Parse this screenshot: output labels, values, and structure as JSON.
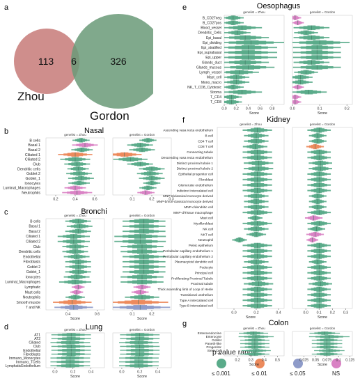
{
  "colors": {
    "sig001": "#5aab8a",
    "sig01": "#ec8a5c",
    "sig05": "#8e9bc9",
    "ns": "#d982c4",
    "venn_zhou": "#c77a78",
    "venn_gordon": "#6a9a78",
    "grid": "#dddddd",
    "axis": "#555555"
  },
  "venn": {
    "letter": "a",
    "zhou_only": "113",
    "overlap": "6",
    "gordon_only": "326",
    "zhou_label": "Zhou",
    "gordon_label": "Gordon"
  },
  "legend": {
    "title": "p value range",
    "items": [
      {
        "label": "≤ 0.001",
        "color_key": "sig001"
      },
      {
        "label": "≤ 0.01",
        "color_key": "sig01"
      },
      {
        "label": "≤ 0.05",
        "color_key": "sig05"
      },
      {
        "label": "NS",
        "color_key": "ns"
      }
    ]
  },
  "chart_data": [
    {
      "id": "nasal",
      "letter": "b",
      "title": "Nasal",
      "type": "violin",
      "xlabel": "",
      "categories": [
        "B cells",
        "Basal 1",
        "Basal 2",
        "Ciliated 1",
        "Ciliated 2",
        "Club",
        "Dendritic cells",
        "Goblet 2",
        "Goblet_1",
        "Ionocytes",
        "Luminal_Macrophages",
        "Neutrophils"
      ],
      "panels": [
        {
          "genelist": "genelist = Zhou",
          "xlim": [
            0.1,
            0.7
          ],
          "ticks": [
            0.2,
            0.4,
            0.6
          ],
          "values": [
            0.46,
            0.5,
            0.47,
            0.4,
            0.4,
            0.42,
            0.43,
            0.44,
            0.46,
            0.44,
            0.4,
            0.42
          ],
          "spread": [
            0.04,
            0.06,
            0.05,
            0.08,
            0.07,
            0.06,
            0.05,
            0.06,
            0.06,
            0.05,
            0.05,
            0.07
          ],
          "pcat": [
            "sig001",
            "ns",
            "sig001",
            "sig01",
            "sig001",
            "sig001",
            "sig001",
            "sig001",
            "sig001",
            "sig001",
            "ns",
            "ns"
          ]
        },
        {
          "genelist": "genelist = Gordon",
          "xlim": [
            0.0,
            0.3
          ],
          "ticks": [
            0.1,
            0.2,
            0.3
          ],
          "values": [
            0.18,
            0.14,
            0.15,
            0.06,
            0.09,
            0.14,
            0.2,
            0.19,
            0.2,
            0.2,
            0.18,
            0.17
          ],
          "spread": [
            0.02,
            0.03,
            0.03,
            0.04,
            0.04,
            0.03,
            0.03,
            0.03,
            0.03,
            0.02,
            0.02,
            0.02
          ],
          "pcat": [
            "sig001",
            "sig001",
            "sig001",
            "sig01",
            "sig001",
            "sig001",
            "sig001",
            "sig001",
            "sig001",
            "sig001",
            "sig001",
            "ns"
          ]
        }
      ]
    },
    {
      "id": "bronchi",
      "letter": "c",
      "title": "Bronchi",
      "type": "violin",
      "xlabel": "Score",
      "categories": [
        "B cells",
        "Basal 1",
        "Basal 2",
        "Ciliated 1",
        "Ciliated 2",
        "Club",
        "Dendritic cells",
        "Endothelial",
        "Fibroblasts",
        "Goblet 2",
        "Goblet_1",
        "Ionocytes",
        "Luminal_Macrophages",
        "Lymphatic",
        "Mast cells",
        "Neutrophils",
        "Smooth muscle",
        "T and NK"
      ],
      "panels": [
        {
          "genelist": "genelist = Zhou",
          "xlim": [
            0.25,
            0.65
          ],
          "ticks": [
            0.4,
            0.6
          ],
          "values": [
            0.47,
            0.48,
            0.47,
            0.44,
            0.44,
            0.45,
            0.45,
            0.46,
            0.47,
            0.47,
            0.47,
            0.46,
            0.45,
            0.47,
            0.46,
            0.45,
            0.43,
            0.44
          ],
          "spread": [
            0.04,
            0.04,
            0.04,
            0.05,
            0.05,
            0.04,
            0.04,
            0.04,
            0.04,
            0.04,
            0.04,
            0.04,
            0.05,
            0.02,
            0.02,
            0.03,
            0.06,
            0.06
          ],
          "pcat": [
            "sig001",
            "sig001",
            "sig001",
            "sig001",
            "sig001",
            "sig001",
            "sig001",
            "sig001",
            "sig001",
            "sig001",
            "sig001",
            "sig001",
            "sig001",
            "ns",
            "ns",
            "sig001",
            "sig01",
            "sig05"
          ]
        },
        {
          "genelist": "genelist = Gordon",
          "xlim": [
            0.0,
            0.3
          ],
          "ticks": [
            0.1,
            0.2
          ],
          "values": [
            0.16,
            0.16,
            0.16,
            0.14,
            0.14,
            0.15,
            0.15,
            0.16,
            0.16,
            0.16,
            0.16,
            0.15,
            0.15,
            0.15,
            0.14,
            0.15,
            0.13,
            0.14
          ],
          "spread": [
            0.05,
            0.05,
            0.05,
            0.06,
            0.06,
            0.05,
            0.05,
            0.05,
            0.05,
            0.05,
            0.05,
            0.05,
            0.05,
            0.02,
            0.02,
            0.04,
            0.07,
            0.07
          ],
          "pcat": [
            "sig001",
            "sig001",
            "sig001",
            "sig001",
            "sig001",
            "sig001",
            "sig001",
            "sig001",
            "sig001",
            "sig001",
            "sig001",
            "sig001",
            "sig001",
            "ns",
            "ns",
            "sig001",
            "sig01",
            "sig05"
          ]
        }
      ]
    },
    {
      "id": "lung",
      "letter": "d",
      "title": "Lung",
      "type": "violin",
      "xlabel": "Score",
      "categories": [
        "AT1",
        "AT2",
        "Ciliated",
        "Club",
        "Endothelial",
        "Fibroblasts",
        "Immuno_Monocytes",
        "Immuno_TCells",
        "LymphaticEndothelium"
      ],
      "panels": [
        {
          "genelist": "genelist = Zhou",
          "xlim": [
            -0.1,
            0.55
          ],
          "ticks": [
            0.0,
            0.2,
            0.4
          ],
          "values": [
            0.18,
            0.18,
            0.17,
            0.18,
            0.18,
            0.18,
            0.17,
            0.17,
            0.17
          ],
          "spread": [
            0.1,
            0.1,
            0.1,
            0.1,
            0.1,
            0.1,
            0.1,
            0.1,
            0.1
          ],
          "pcat": [
            "sig001",
            "sig001",
            "sig001",
            "sig001",
            "sig001",
            "sig001",
            "sig001",
            "sig001",
            "sig001"
          ]
        },
        {
          "genelist": "genelist = Gordon",
          "xlim": [
            -0.1,
            0.55
          ],
          "ticks": [
            0.0,
            0.2,
            0.4
          ],
          "values": [
            0.2,
            0.2,
            0.19,
            0.2,
            0.2,
            0.2,
            0.19,
            0.19,
            0.19
          ],
          "spread": [
            0.1,
            0.1,
            0.1,
            0.1,
            0.1,
            0.1,
            0.1,
            0.1,
            0.1
          ],
          "pcat": [
            "sig001",
            "sig001",
            "sig001",
            "sig001",
            "sig001",
            "sig001",
            "sig001",
            "sig001",
            "sig001"
          ]
        }
      ]
    },
    {
      "id": "oesophagus",
      "letter": "e",
      "title": "Oesophagus",
      "type": "violin",
      "xlabel": "Score",
      "categories": [
        "B_CD27neg",
        "B_CD27pos",
        "Blood_vessel",
        "Dendritic_Cells",
        "Epi_basal",
        "Epi_dividing",
        "Epi_stratified",
        "Epi_suprabasal",
        "Epi_upper",
        "Glands_duct",
        "Glands_mucous",
        "Lymph_vessel",
        "Mast_cell",
        "Mono_macro",
        "NK_T_CD8_Cytotoxic",
        "Stroma",
        "T_CD4",
        "T_CD8"
      ],
      "panels": [
        {
          "genelist": "genelist = Zhou",
          "xlim": [
            0.0,
            1.0
          ],
          "ticks": [
            0.0,
            0.2,
            0.4,
            0.6,
            0.8
          ],
          "values": [
            0.15,
            0.15,
            0.3,
            0.22,
            0.35,
            0.45,
            0.4,
            0.4,
            0.4,
            0.35,
            0.4,
            0.25,
            0.2,
            0.2,
            0.15,
            0.3,
            0.12,
            0.12
          ],
          "spread": [
            0.08,
            0.08,
            0.15,
            0.1,
            0.18,
            0.25,
            0.22,
            0.22,
            0.22,
            0.18,
            0.2,
            0.15,
            0.1,
            0.1,
            0.08,
            0.15,
            0.08,
            0.08
          ],
          "pcat": [
            "sig001",
            "sig001",
            "sig001",
            "sig001",
            "sig001",
            "sig001",
            "sig001",
            "sig001",
            "sig001",
            "sig001",
            "sig001",
            "sig001",
            "sig001",
            "sig001",
            "sig001",
            "sig001",
            "sig001",
            "sig001"
          ]
        },
        {
          "genelist": "genelist = Gordon",
          "xlim": [
            0.0,
            0.22
          ],
          "ticks": [
            0.0,
            0.1,
            0.2
          ],
          "values": [
            0.01,
            0.02,
            0.07,
            0.05,
            0.07,
            0.1,
            0.09,
            0.09,
            0.09,
            0.07,
            0.09,
            0.05,
            0.03,
            0.03,
            0.02,
            0.06,
            0.01,
            0.01
          ],
          "spread": [
            0.01,
            0.01,
            0.03,
            0.02,
            0.03,
            0.05,
            0.04,
            0.04,
            0.04,
            0.03,
            0.04,
            0.02,
            0.02,
            0.02,
            0.01,
            0.03,
            0.01,
            0.01
          ],
          "pcat": [
            "ns",
            "ns",
            "sig001",
            "sig001",
            "sig001",
            "sig001",
            "sig001",
            "sig001",
            "sig001",
            "sig001",
            "sig001",
            "sig001",
            "sig001",
            "sig001",
            "ns",
            "sig001",
            "ns",
            "ns"
          ]
        }
      ]
    },
    {
      "id": "kidney",
      "letter": "f",
      "title": "Kidney",
      "type": "violin",
      "xlabel": "Score",
      "categories": [
        "Ascending vasa recta endothelium",
        "B cell",
        "CD4 T cell",
        "CD8 T cell",
        "Connecting tubule",
        "Descending vasa recta endothelium",
        "Distinct proximal tubule 1",
        "Distinct proximal tubule 2",
        "Epithelial progenitor cell",
        "Fibroblast",
        "Glomerular endothelium",
        "Indistinct intercalated cell",
        "MNP-a/classical monocyte derived",
        "MNP-b/non-classical monocyte derived",
        "MNP-c/dendritic cell",
        "MNP-d/Tissue macrophage",
        "Mast cell",
        "Myofibroblast",
        "NK cell",
        "NKT cell",
        "Neutrophil",
        "Pelvic epithelium",
        "Peritubular capillary endothelium 1",
        "Peritubular capillary endothelium 2",
        "Plasmacytoid dendritic cell",
        "Podocyte",
        "Principal cell",
        "Proliferating Proximal Tubule",
        "Proximal tubule",
        "Thick ascending limb of Loop of Henle",
        "Transitional urothelium",
        "Type A intercalated cell",
        "Type B intercalated cell"
      ],
      "panels": [
        {
          "genelist": "genelist = Zhou",
          "xlim": [
            -0.15,
            0.45
          ],
          "ticks": [
            0.0,
            0.2,
            0.4
          ],
          "values": [
            0.21,
            0.2,
            0.2,
            0.19,
            0.21,
            0.21,
            0.22,
            0.22,
            0.21,
            0.21,
            0.21,
            0.21,
            0.2,
            0.2,
            0.2,
            0.21,
            0.19,
            0.21,
            0.2,
            0.2,
            0.05,
            0.21,
            0.21,
            0.21,
            0.2,
            0.21,
            0.21,
            0.21,
            0.22,
            0.21,
            0.21,
            0.21,
            0.21
          ],
          "spread": [
            0.06,
            0.05,
            0.05,
            0.05,
            0.06,
            0.06,
            0.06,
            0.06,
            0.06,
            0.06,
            0.06,
            0.06,
            0.05,
            0.05,
            0.05,
            0.06,
            0.03,
            0.06,
            0.05,
            0.04,
            0.03,
            0.06,
            0.06,
            0.06,
            0.05,
            0.06,
            0.06,
            0.06,
            0.06,
            0.06,
            0.06,
            0.06,
            0.06
          ],
          "pcat": [
            "sig001",
            "sig001",
            "sig001",
            "sig001",
            "sig001",
            "sig001",
            "sig001",
            "sig001",
            "sig001",
            "sig001",
            "sig001",
            "sig001",
            "sig001",
            "sig001",
            "sig001",
            "sig001",
            "sig001",
            "sig001",
            "sig001",
            "sig001",
            "sig001",
            "sig001",
            "sig001",
            "sig001",
            "sig001",
            "sig001",
            "sig001",
            "sig001",
            "sig001",
            "sig001",
            "sig001",
            "sig001",
            "sig001"
          ]
        },
        {
          "genelist": "genelist = Gordon",
          "xlim": [
            -0.1,
            0.35
          ],
          "ticks": [
            0.0,
            0.1,
            0.2,
            0.3
          ],
          "values": [
            0.1,
            0.09,
            0.09,
            0.07,
            0.1,
            0.1,
            0.11,
            0.11,
            0.1,
            0.1,
            0.1,
            0.1,
            0.09,
            0.09,
            0.09,
            0.1,
            0.06,
            0.1,
            0.08,
            0.07,
            0.05,
            0.1,
            0.1,
            0.1,
            0.09,
            0.1,
            0.1,
            0.1,
            0.11,
            0.1,
            0.1,
            0.1,
            0.1
          ],
          "spread": [
            0.04,
            0.03,
            0.03,
            0.03,
            0.04,
            0.04,
            0.04,
            0.04,
            0.04,
            0.04,
            0.04,
            0.04,
            0.03,
            0.03,
            0.03,
            0.04,
            0.03,
            0.04,
            0.03,
            0.03,
            0.02,
            0.04,
            0.04,
            0.04,
            0.03,
            0.04,
            0.04,
            0.04,
            0.04,
            0.04,
            0.04,
            0.04,
            0.04
          ],
          "pcat": [
            "sig001",
            "sig001",
            "sig001",
            "sig01",
            "sig001",
            "sig001",
            "sig001",
            "sig001",
            "sig001",
            "sig001",
            "sig001",
            "sig001",
            "sig001",
            "sig001",
            "sig001",
            "sig001",
            "ns",
            "sig001",
            "sig001",
            "ns",
            "ns",
            "sig001",
            "sig001",
            "sig001",
            "sig001",
            "sig001",
            "sig001",
            "sig001",
            "sig001",
            "sig001",
            "sig001",
            "sig001",
            "sig001"
          ]
        }
      ]
    },
    {
      "id": "colon",
      "letter": "g",
      "title": "Colon",
      "type": "violin",
      "xlabel": "Score",
      "categories": [
        "Enteroendocrine",
        "Enterocyte",
        "Goblet",
        "Paneth-like",
        "Progenitor",
        "Stem Cell",
        "TA"
      ],
      "panels": [
        {
          "genelist": "genelist = Zhou",
          "xlim": [
            0.1,
            0.55
          ],
          "ticks": [
            0.2,
            0.3,
            0.4,
            0.5
          ],
          "values": [
            0.32,
            0.34,
            0.33,
            0.33,
            0.33,
            0.34,
            0.33
          ],
          "spread": [
            0.05,
            0.06,
            0.05,
            0.05,
            0.05,
            0.05,
            0.05
          ],
          "pcat": [
            "sig001",
            "sig001",
            "sig001",
            "sig001",
            "sig001",
            "sig001",
            "sig001"
          ]
        },
        {
          "genelist": "genelist = Gordon",
          "xlim": [
            0.0,
            0.13
          ],
          "ticks": [
            0.025,
            0.05,
            0.075,
            0.1,
            0.125
          ],
          "values": [
            0.07,
            0.08,
            0.075,
            0.075,
            0.075,
            0.08,
            0.075
          ],
          "spread": [
            0.015,
            0.02,
            0.015,
            0.015,
            0.015,
            0.015,
            0.015
          ],
          "pcat": [
            "sig001",
            "sig001",
            "sig001",
            "sig001",
            "sig001",
            "sig001",
            "sig001"
          ]
        }
      ]
    }
  ]
}
